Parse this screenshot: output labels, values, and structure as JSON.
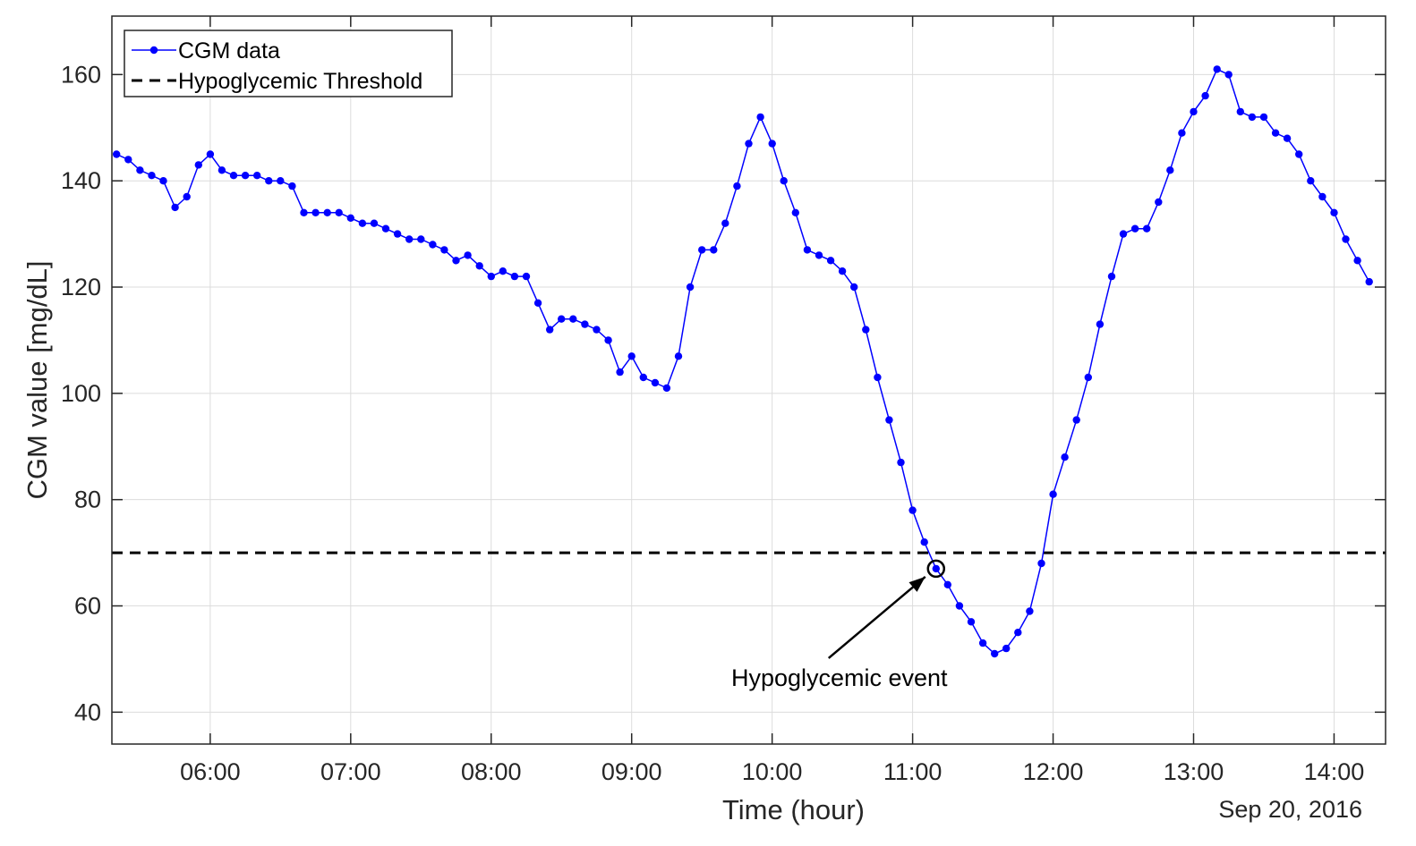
{
  "chart_data": {
    "type": "line",
    "xlabel": "Time (hour)",
    "ylabel": "CGM value [mg/dL]",
    "date_label": "Sep 20, 2016",
    "xlim": [
      "05:18",
      "14:22"
    ],
    "ylim": [
      34,
      171
    ],
    "grid": true,
    "legend_position": "top-left",
    "x_ticks": [
      "06:00",
      "07:00",
      "08:00",
      "09:00",
      "10:00",
      "11:00",
      "12:00",
      "13:00",
      "14:00"
    ],
    "y_ticks": [
      40,
      60,
      80,
      100,
      120,
      140,
      160
    ],
    "series": [
      {
        "name": "CGM data",
        "color": "#0000ff",
        "marker": "circle",
        "interval_minutes": 5,
        "x": [
          "05:20",
          "05:25",
          "05:30",
          "05:35",
          "05:40",
          "05:45",
          "05:50",
          "05:55",
          "06:00",
          "06:05",
          "06:10",
          "06:15",
          "06:20",
          "06:25",
          "06:30",
          "06:35",
          "06:40",
          "06:45",
          "06:50",
          "06:55",
          "07:00",
          "07:05",
          "07:10",
          "07:15",
          "07:20",
          "07:25",
          "07:30",
          "07:35",
          "07:40",
          "07:45",
          "07:50",
          "07:55",
          "08:00",
          "08:05",
          "08:10",
          "08:15",
          "08:20",
          "08:25",
          "08:30",
          "08:35",
          "08:40",
          "08:45",
          "08:50",
          "08:55",
          "09:00",
          "09:05",
          "09:10",
          "09:15",
          "09:20",
          "09:25",
          "09:30",
          "09:35",
          "09:40",
          "09:45",
          "09:50",
          "09:55",
          "10:00",
          "10:05",
          "10:10",
          "10:15",
          "10:20",
          "10:25",
          "10:30",
          "10:35",
          "10:40",
          "10:45",
          "10:50",
          "10:55",
          "11:00",
          "11:05",
          "11:10",
          "11:15",
          "11:20",
          "11:25",
          "11:30",
          "11:35",
          "11:40",
          "11:45",
          "11:50",
          "11:55",
          "12:00",
          "12:05",
          "12:10",
          "12:15",
          "12:20",
          "12:25",
          "12:30",
          "12:35",
          "12:40",
          "12:45",
          "12:50",
          "12:55",
          "13:00",
          "13:05",
          "13:10",
          "13:15",
          "13:20",
          "13:25",
          "13:30",
          "13:35",
          "13:40",
          "13:45",
          "13:50",
          "13:55",
          "14:00",
          "14:05",
          "14:10",
          "14:15"
        ],
        "values": [
          145,
          144,
          142,
          141,
          140,
          135,
          137,
          143,
          145,
          142,
          141,
          141,
          141,
          140,
          140,
          139,
          134,
          134,
          134,
          134,
          133,
          132,
          132,
          131,
          130,
          129,
          129,
          128,
          127,
          125,
          126,
          124,
          122,
          123,
          122,
          122,
          117,
          112,
          114,
          114,
          113,
          112,
          110,
          104,
          107,
          103,
          102,
          101,
          107,
          120,
          127,
          127,
          132,
          139,
          147,
          152,
          147,
          140,
          134,
          127,
          126,
          125,
          123,
          120,
          112,
          103,
          95,
          87,
          78,
          72,
          67,
          64,
          60,
          57,
          53,
          51,
          52,
          55,
          59,
          68,
          81,
          88,
          95,
          103,
          113,
          122,
          130,
          131,
          131,
          136,
          142,
          149,
          153,
          156,
          161,
          160,
          153,
          152,
          152,
          149,
          148,
          145,
          140,
          137,
          134,
          129,
          125,
          121
        ]
      },
      {
        "name": "Hypoglycemic Threshold",
        "color": "#000000",
        "style": "dashed",
        "value": 70
      }
    ],
    "annotations": [
      {
        "text": "Hypoglycemic event",
        "point": {
          "x": "11:10",
          "y": 67
        }
      }
    ]
  }
}
